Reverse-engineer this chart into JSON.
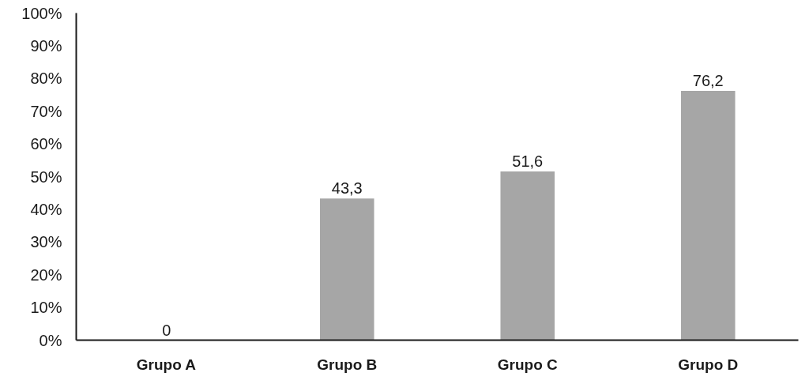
{
  "chart_data": {
    "type": "bar",
    "categories": [
      "Grupo A",
      "Grupo B",
      "Grupo C",
      "Grupo D"
    ],
    "values": [
      0,
      43.3,
      51.6,
      76.2
    ],
    "value_labels": [
      "0",
      "43,3",
      "51,6",
      "76,2"
    ],
    "color": "#a6a6a6",
    "ylim": [
      0,
      100
    ],
    "yticks": [
      {
        "value": 0,
        "label": "0%"
      },
      {
        "value": 10,
        "label": "10%"
      },
      {
        "value": 20,
        "label": "20%"
      },
      {
        "value": 30,
        "label": "30%"
      },
      {
        "value": 40,
        "label": "40%"
      },
      {
        "value": 50,
        "label": "50%"
      },
      {
        "value": 60,
        "label": "60%"
      },
      {
        "value": 70,
        "label": "70%"
      },
      {
        "value": 80,
        "label": "80%"
      },
      {
        "value": 90,
        "label": "90%"
      },
      {
        "value": 100,
        "label": "100%"
      }
    ]
  }
}
